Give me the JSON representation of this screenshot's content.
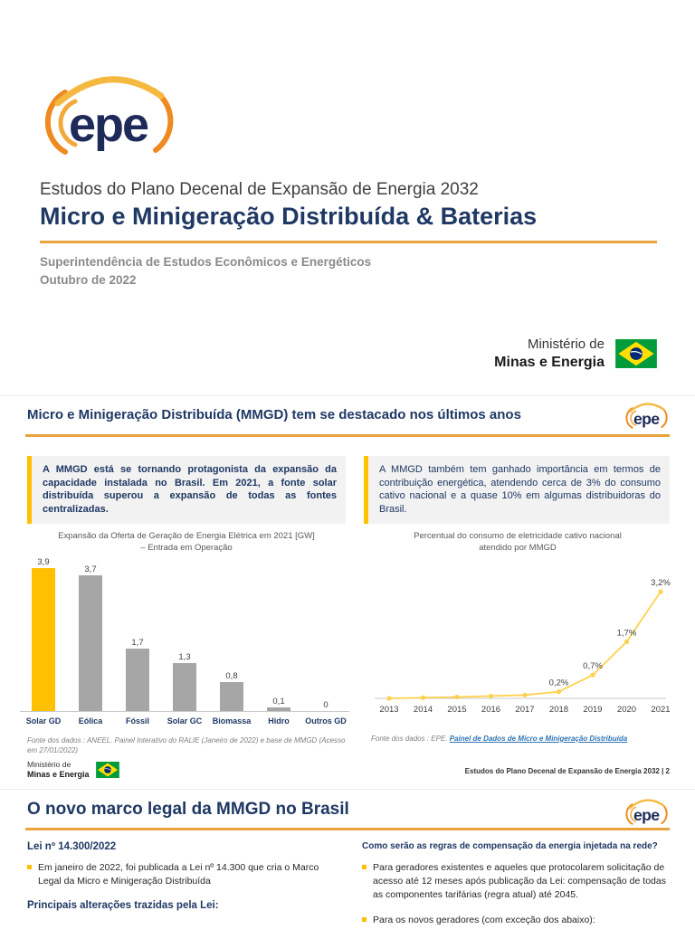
{
  "logos": {
    "epe_text": "epe"
  },
  "ministry": {
    "line1": "Ministério de",
    "line2": "Minas e Energia"
  },
  "slide1": {
    "title_line1": "Estudos do Plano Decenal de Expansão de Energia 2032",
    "title_line2": "Micro e Minigeração Distribuída & Baterias",
    "subtitle": "Superintendência de Estudos Econômicos e Energéticos",
    "date": "Outubro de 2022"
  },
  "slide2": {
    "title": "Micro e Minigeração Distribuída (MMGD) tem se destacado nos últimos anos",
    "box_left": "A MMGD está se tornando protagonista da expansão da capacidade instalada no Brasil. Em 2021, a fonte solar distribuída superou a expansão de todas as fontes centralizadas.",
    "box_right": "A MMGD também tem ganhado importância em termos de contribuição energética, atendendo cerca de 3% do consumo cativo nacional e a quase 10% em algumas distribuidoras do Brasil.",
    "chart1_title": "Expansão da Oferta de Geração de Energia Elétrica em 2021 [GW]\n– Entrada em Operação",
    "chart1_source": "Fonte dos dados : ANEEL. Painel Interativo do RALIE (Janeiro de 2022)  e base de MMGD (Acesso em 27/01/2022)",
    "chart2_title": "Percentual do consumo de eletricidade cativo nacional\natendido por MMGD",
    "chart2_source_prefix": "Fonte dos dados : EPE. ",
    "chart2_source_link": "Painel de Dados de Micro e Minigeração Distribuída",
    "footer_right": "Estudos do Plano Decenal de Expansão de Energia 2032 | 2"
  },
  "slide3": {
    "title": "O novo marco legal da MMGD no Brasil",
    "left_heading": "Lei nº 14.300/2022",
    "left_bullet1": "Em janeiro de 2022, foi publicada a Lei nº 14.300 que cria o Marco Legal da Micro e Minigeração Distribuída",
    "left_heading2": "Principais alterações trazidas pela Lei:",
    "right_heading": "Como serão as regras de compensação da energia injetada na rede?",
    "right_bullet1": "Para geradores existentes e aqueles que protocolarem solicitação de acesso até 12 meses após publicação da Lei: compensação de todas as componentes tarifárias (regra atual) até 2045.",
    "right_bullet2": "Para os novos geradores (com exceção dos abaixo):"
  },
  "chart_data": [
    {
      "type": "bar",
      "title": "Expansão da Oferta de Geração de Energia Elétrica em 2021 [GW] – Entrada em Operação",
      "categories": [
        "Solar GD",
        "Eólica",
        "Fóssil",
        "Solar GC",
        "Biomassa",
        "Hidro",
        "Outros GD"
      ],
      "values": [
        3.9,
        3.7,
        1.7,
        1.3,
        0.8,
        0.1,
        0
      ],
      "value_labels": [
        "3,9",
        "3,7",
        "1,7",
        "1,3",
        "0,8",
        "0,1",
        "0"
      ],
      "bar_colors": [
        "#FFC000",
        "#A6A6A6",
        "#A6A6A6",
        "#A6A6A6",
        "#A6A6A6",
        "#A6A6A6",
        "#A6A6A6"
      ],
      "ylim": [
        0,
        4.2
      ],
      "grid": false
    },
    {
      "type": "line",
      "title": "Percentual do consumo de eletricidade cativo nacional atendido por MMGD",
      "x": [
        "2013",
        "2014",
        "2015",
        "2016",
        "2017",
        "2018",
        "2019",
        "2020",
        "2021"
      ],
      "values": [
        0.0,
        0.02,
        0.04,
        0.07,
        0.1,
        0.2,
        0.7,
        1.7,
        3.2
      ],
      "point_labels": [
        "",
        "",
        "",
        "",
        "",
        "0,2%",
        "0,7%",
        "1,7%",
        "3,2%"
      ],
      "color": "#FFD24D",
      "ylim": [
        0,
        3.8
      ],
      "grid": false,
      "legend": "none"
    }
  ],
  "colors": {
    "accent_orange": "#E8A33D",
    "navy": "#1F3864",
    "bar_yellow": "#FFC000",
    "bar_gray": "#A6A6A6",
    "line_yellow": "#FFD24D",
    "link_blue": "#2E75B6",
    "callout_bg": "#F2F2F2",
    "callout_border": "#FFC000"
  }
}
